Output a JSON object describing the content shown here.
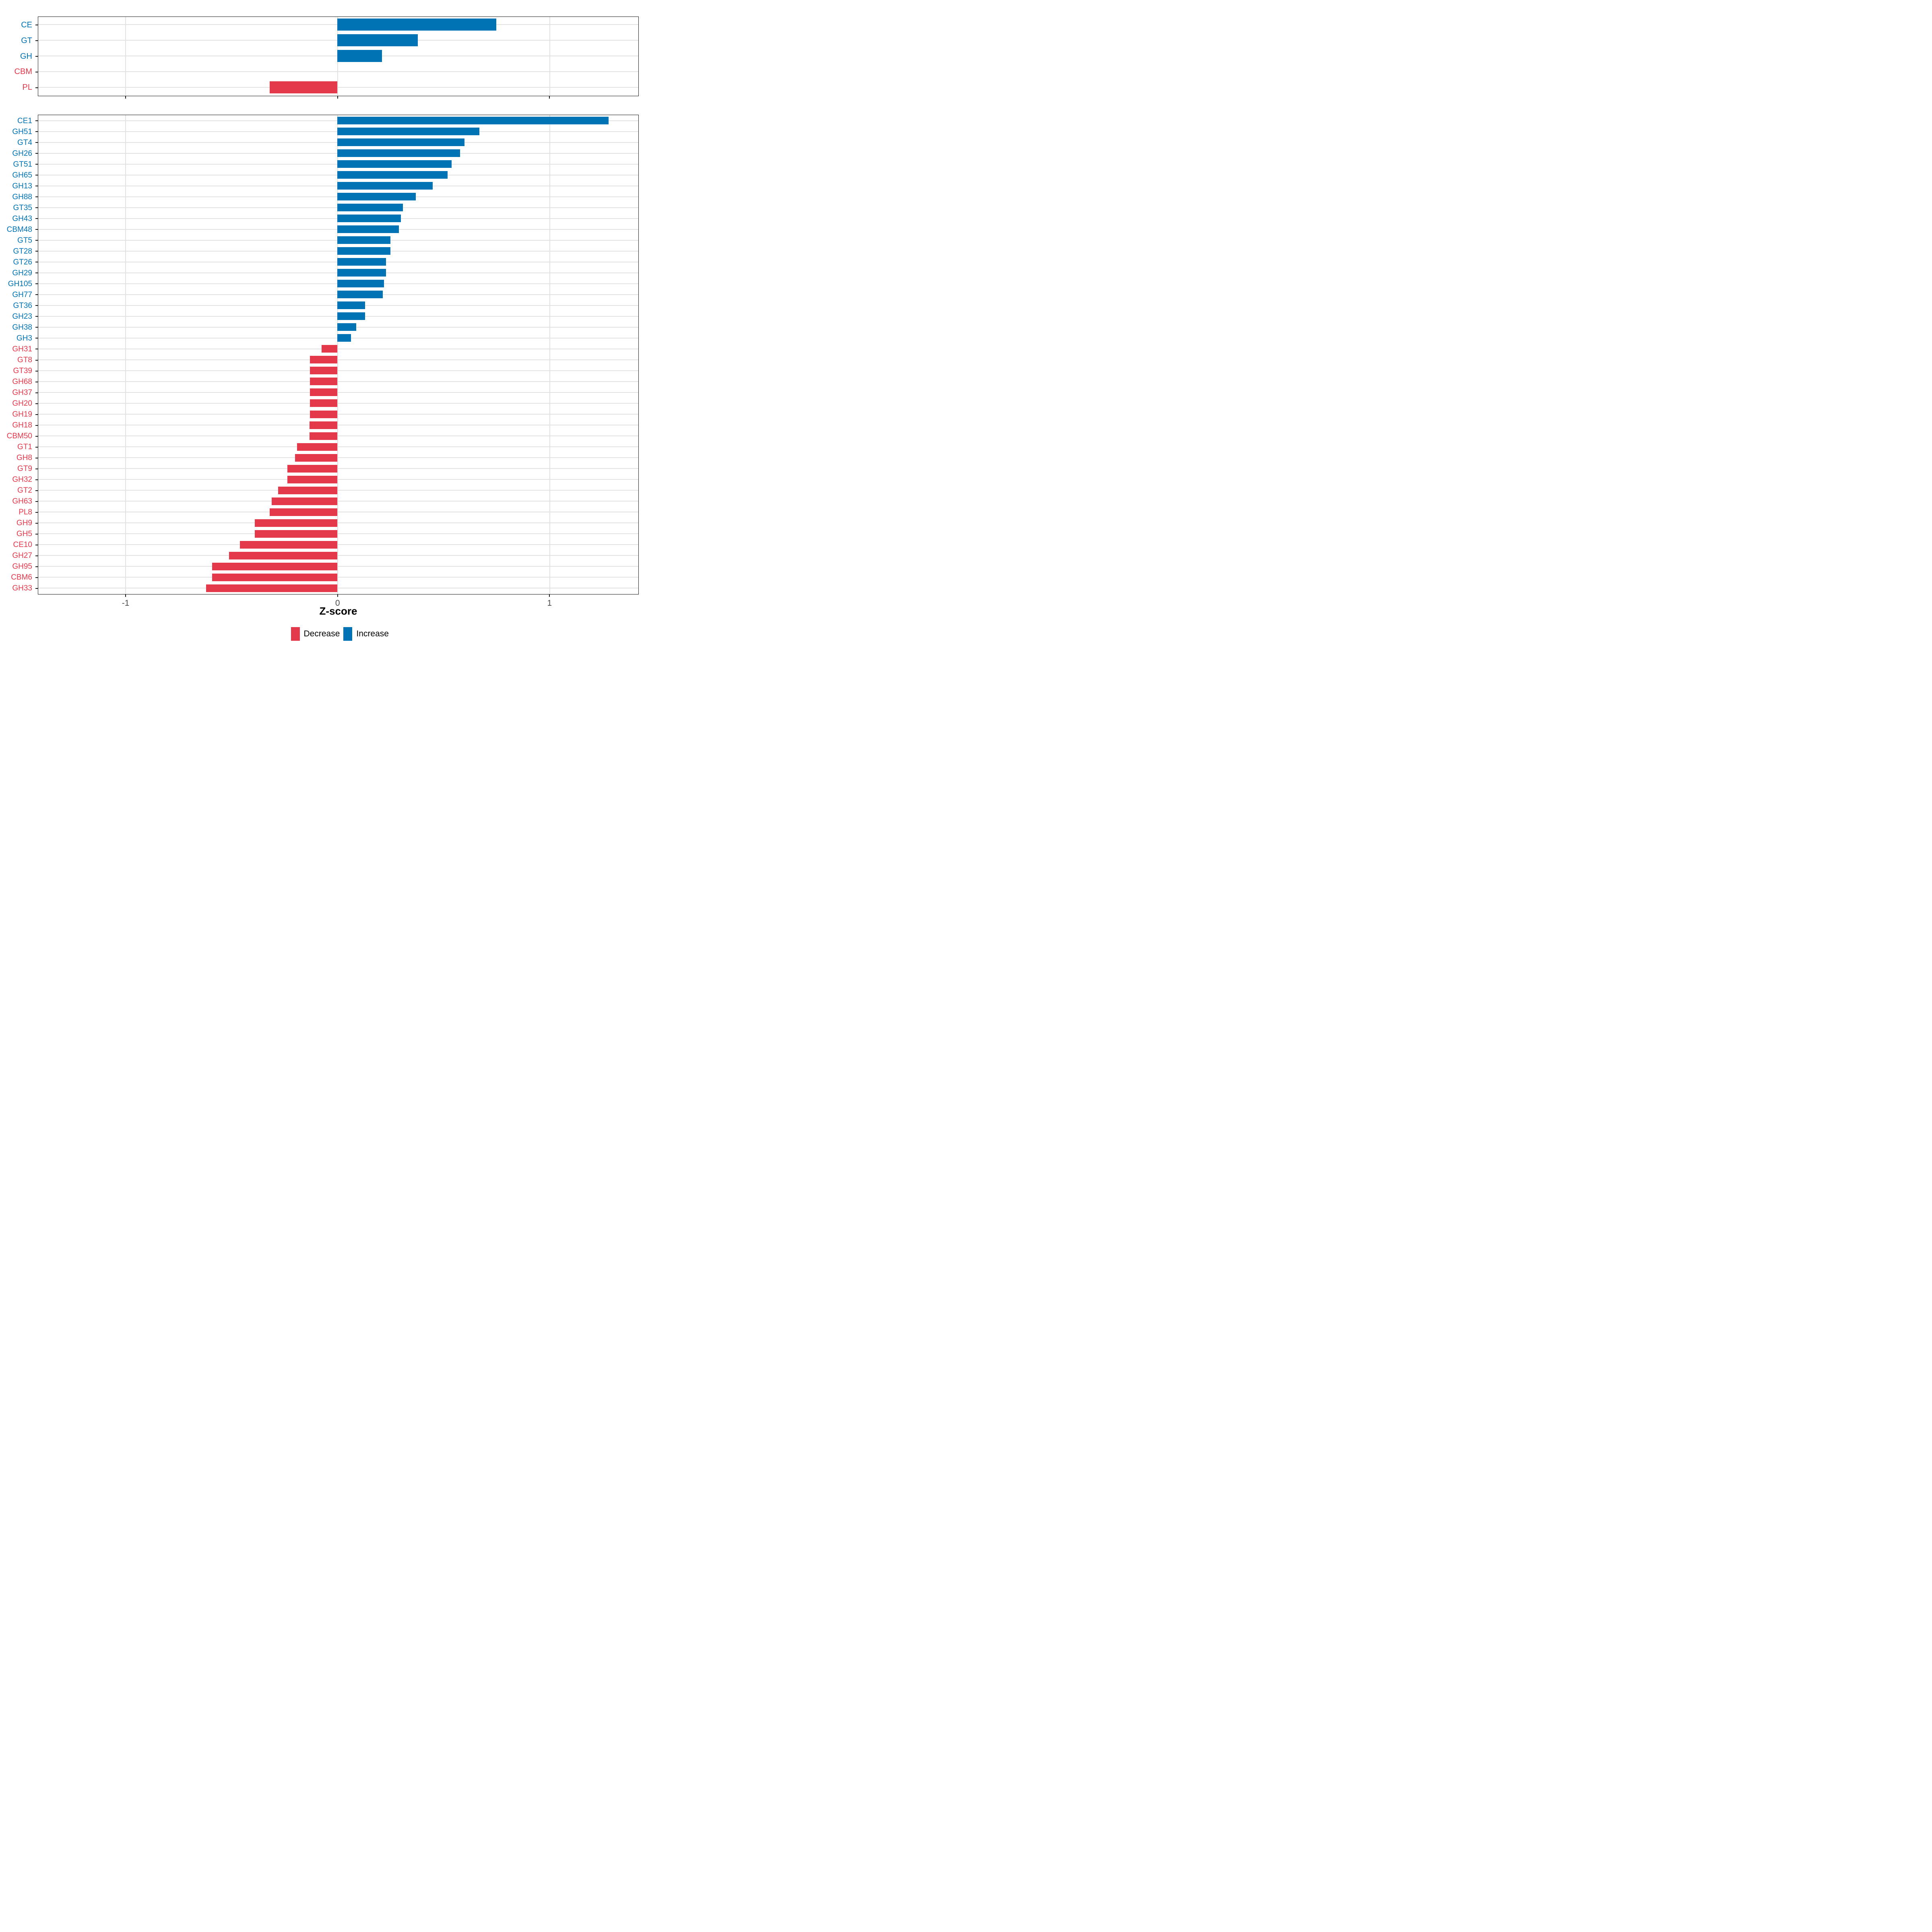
{
  "axis": {
    "xlabel": "Z-score",
    "tick_labels": [
      "-1",
      "0",
      "1"
    ]
  },
  "legend": {
    "position": "bottom-center",
    "items": [
      {
        "label": "Decrease",
        "direction": "decrease",
        "color": "#e4384b"
      },
      {
        "label": "Increase",
        "direction": "increase",
        "color": "#0073b5"
      }
    ]
  },
  "colors": {
    "increase": "#0073b5",
    "decrease": "#e4384b",
    "gridline": "#e2e2e2",
    "panel_border": "#1a1a1a",
    "tick_label": "#4d4d4d",
    "background": "#ffffff"
  },
  "chart_data": [
    {
      "id": "cazyme-class-panel",
      "type": "bar",
      "orientation": "horizontal",
      "xlim": [
        -1.411,
        1.418
      ],
      "x_ticks": [
        -1,
        0,
        1
      ],
      "show_x_tick_labels": false,
      "grid": true,
      "categories": [
        "CE",
        "GT",
        "GH",
        "CBM",
        "PL"
      ],
      "values": [
        0.75,
        0.38,
        0.21,
        0.0,
        -0.32
      ],
      "directions": [
        "increase",
        "increase",
        "increase",
        "decrease",
        "decrease"
      ]
    },
    {
      "id": "cazyme-family-panel",
      "type": "bar",
      "orientation": "horizontal",
      "xlim": [
        -1.411,
        1.418
      ],
      "x_ticks": [
        -1,
        0,
        1
      ],
      "show_x_tick_labels": true,
      "grid": true,
      "categories": [
        "CE1",
        "GH51",
        "GT4",
        "GH26",
        "GT51",
        "GH65",
        "GH13",
        "GH88",
        "GT35",
        "GH43",
        "CBM48",
        "GT5",
        "GT28",
        "GT26",
        "GH29",
        "GH105",
        "GH77",
        "GT36",
        "GH23",
        "GH38",
        "GH3",
        "GH31",
        "GT8",
        "GT39",
        "GH68",
        "GH37",
        "GH20",
        "GH19",
        "GH18",
        "CBM50",
        "GT1",
        "GH8",
        "GT9",
        "GH32",
        "GT2",
        "GH63",
        "PL8",
        "GH9",
        "GH5",
        "CE10",
        "GH27",
        "GH95",
        "CBM6",
        "GH33"
      ],
      "values": [
        1.28,
        0.67,
        0.6,
        0.58,
        0.54,
        0.52,
        0.45,
        0.37,
        0.31,
        0.3,
        0.29,
        0.25,
        0.25,
        0.23,
        0.23,
        0.22,
        0.215,
        0.13,
        0.13,
        0.09,
        0.065,
        -0.075,
        -0.13,
        -0.13,
        -0.13,
        -0.13,
        -0.13,
        -0.13,
        -0.132,
        -0.132,
        -0.19,
        -0.2,
        -0.235,
        -0.235,
        -0.28,
        -0.31,
        -0.32,
        -0.39,
        -0.39,
        -0.46,
        -0.51,
        -0.59,
        -0.59,
        -0.62
      ],
      "directions": [
        "increase",
        "increase",
        "increase",
        "increase",
        "increase",
        "increase",
        "increase",
        "increase",
        "increase",
        "increase",
        "increase",
        "increase",
        "increase",
        "increase",
        "increase",
        "increase",
        "increase",
        "increase",
        "increase",
        "increase",
        "increase",
        "decrease",
        "decrease",
        "decrease",
        "decrease",
        "decrease",
        "decrease",
        "decrease",
        "decrease",
        "decrease",
        "decrease",
        "decrease",
        "decrease",
        "decrease",
        "decrease",
        "decrease",
        "decrease",
        "decrease",
        "decrease",
        "decrease",
        "decrease",
        "decrease",
        "decrease",
        "decrease"
      ]
    }
  ]
}
